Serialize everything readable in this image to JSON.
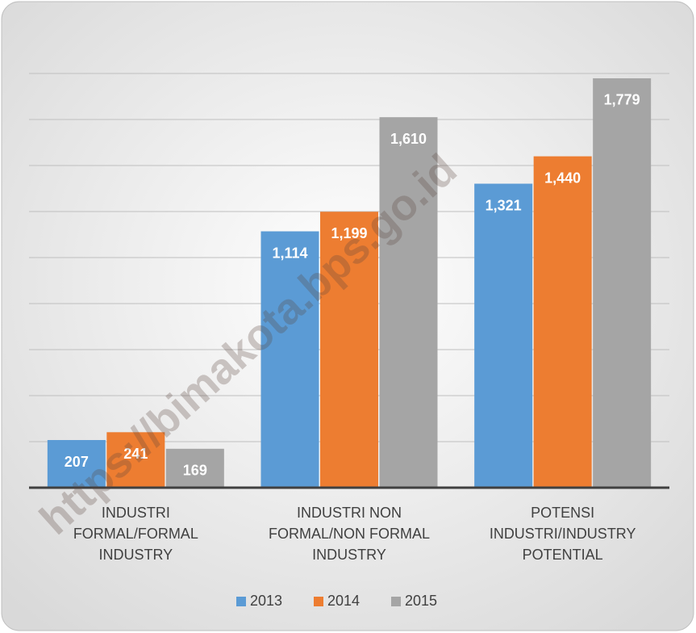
{
  "chart_data": {
    "type": "bar",
    "categories": [
      "INDUSTRI\nFORMAL/FORMAL\nINDUSTRY",
      "INDUSTRI NON\nFORMAL/NON FORMAL\nINDUSTRY",
      "POTENSI\nINDUSTRI/INDUSTRY\nPOTENTIAL"
    ],
    "series": [
      {
        "name": "2013",
        "color": "#5b9bd5",
        "values": [
          207,
          1114,
          1321
        ],
        "value_labels": [
          "207",
          "1,114",
          "1,321"
        ]
      },
      {
        "name": "2014",
        "color": "#ed7d31",
        "values": [
          241,
          1199,
          1440
        ],
        "value_labels": [
          "241",
          "1,199",
          "1,440"
        ]
      },
      {
        "name": "2015",
        "color": "#a5a5a5",
        "values": [
          169,
          1610,
          1779
        ],
        "value_labels": [
          "169",
          "1,610",
          "1,779"
        ]
      }
    ],
    "ylim": [
      0,
      1800
    ],
    "yticks": [
      0,
      200,
      400,
      600,
      800,
      1000,
      1200,
      1400,
      1600,
      1800
    ],
    "grid": true,
    "legend": "bottom",
    "watermark": "https://bimakota.bps.go.id"
  }
}
